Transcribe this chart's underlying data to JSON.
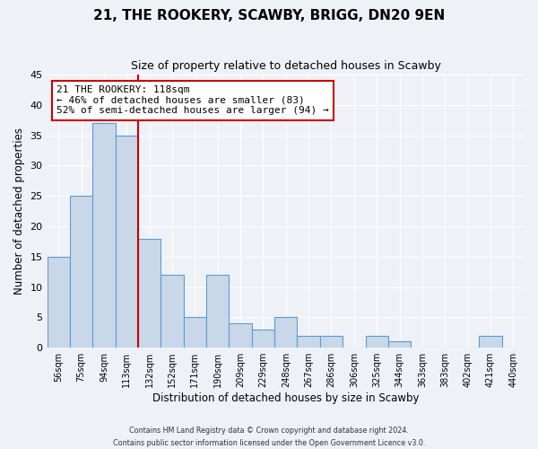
{
  "title": "21, THE ROOKERY, SCAWBY, BRIGG, DN20 9EN",
  "subtitle": "Size of property relative to detached houses in Scawby",
  "xlabel": "Distribution of detached houses by size in Scawby",
  "ylabel": "Number of detached properties",
  "bar_labels": [
    "56sqm",
    "75sqm",
    "94sqm",
    "113sqm",
    "132sqm",
    "152sqm",
    "171sqm",
    "190sqm",
    "209sqm",
    "229sqm",
    "248sqm",
    "267sqm",
    "286sqm",
    "306sqm",
    "325sqm",
    "344sqm",
    "363sqm",
    "383sqm",
    "402sqm",
    "421sqm",
    "440sqm"
  ],
  "bar_values": [
    15,
    25,
    37,
    35,
    18,
    12,
    5,
    12,
    4,
    3,
    5,
    2,
    2,
    0,
    2,
    1,
    0,
    0,
    0,
    2,
    0
  ],
  "bar_color": "#c8d8e8",
  "bar_edge_color": "#5b9bd5",
  "vline_index": 3,
  "vline_color": "#cc0000",
  "annotation_text": "21 THE ROOKERY: 118sqm\n← 46% of detached houses are smaller (83)\n52% of semi-detached houses are larger (94) →",
  "annotation_box_color": "#ffffff",
  "annotation_box_edge": "#cc0000",
  "ylim": [
    0,
    45
  ],
  "yticks": [
    0,
    5,
    10,
    15,
    20,
    25,
    30,
    35,
    40,
    45
  ],
  "footer_line1": "Contains HM Land Registry data © Crown copyright and database right 2024.",
  "footer_line2": "Contains public sector information licensed under the Open Government Licence v3.0.",
  "bg_color": "#eef2f7",
  "grid_color": "#ffffff"
}
